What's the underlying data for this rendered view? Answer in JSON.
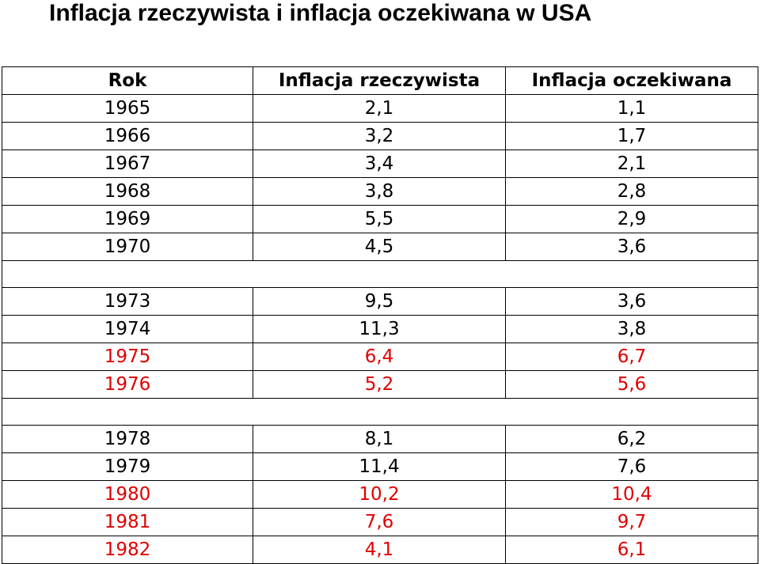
{
  "title": "Inflacja rzeczywista i inflacja oczekiwana w USA",
  "headers": [
    "Rok",
    "Inflacja rzeczywista",
    "Inflacja oczekiwana"
  ],
  "colors": {
    "highlight": "#e00000",
    "text": "#000000"
  },
  "rows": [
    {
      "year": "1965",
      "actual": "2,1",
      "expected": "1,1",
      "highlight": false
    },
    {
      "year": "1966",
      "actual": "3,2",
      "expected": "1,7",
      "highlight": false
    },
    {
      "year": "1967",
      "actual": "3,4",
      "expected": "2,1",
      "highlight": false
    },
    {
      "year": "1968",
      "actual": "3,8",
      "expected": "2,8",
      "highlight": false
    },
    {
      "year": "1969",
      "actual": "5,5",
      "expected": "2,9",
      "highlight": false
    },
    {
      "year": "1970",
      "actual": "4,5",
      "expected": "3,6",
      "highlight": false
    },
    {
      "gap": true
    },
    {
      "year": "1973",
      "actual": "9,5",
      "expected": "3,6",
      "highlight": false
    },
    {
      "year": "1974",
      "actual": "11,3",
      "expected": "3,8",
      "highlight": false
    },
    {
      "year": "1975",
      "actual": "6,4",
      "expected": "6,7",
      "highlight": true
    },
    {
      "year": "1976",
      "actual": "5,2",
      "expected": "5,6",
      "highlight": true
    },
    {
      "gap": true
    },
    {
      "year": "1978",
      "actual": "8,1",
      "expected": "6,2",
      "highlight": false
    },
    {
      "year": "1979",
      "actual": "11,4",
      "expected": "7,6",
      "highlight": false
    },
    {
      "year": "1980",
      "actual": "10,2",
      "expected": "10,4",
      "highlight": true
    },
    {
      "year": "1981",
      "actual": "7,6",
      "expected": "9,7",
      "highlight": true
    },
    {
      "year": "1982",
      "actual": "4,1",
      "expected": "6,1",
      "highlight": true
    }
  ]
}
